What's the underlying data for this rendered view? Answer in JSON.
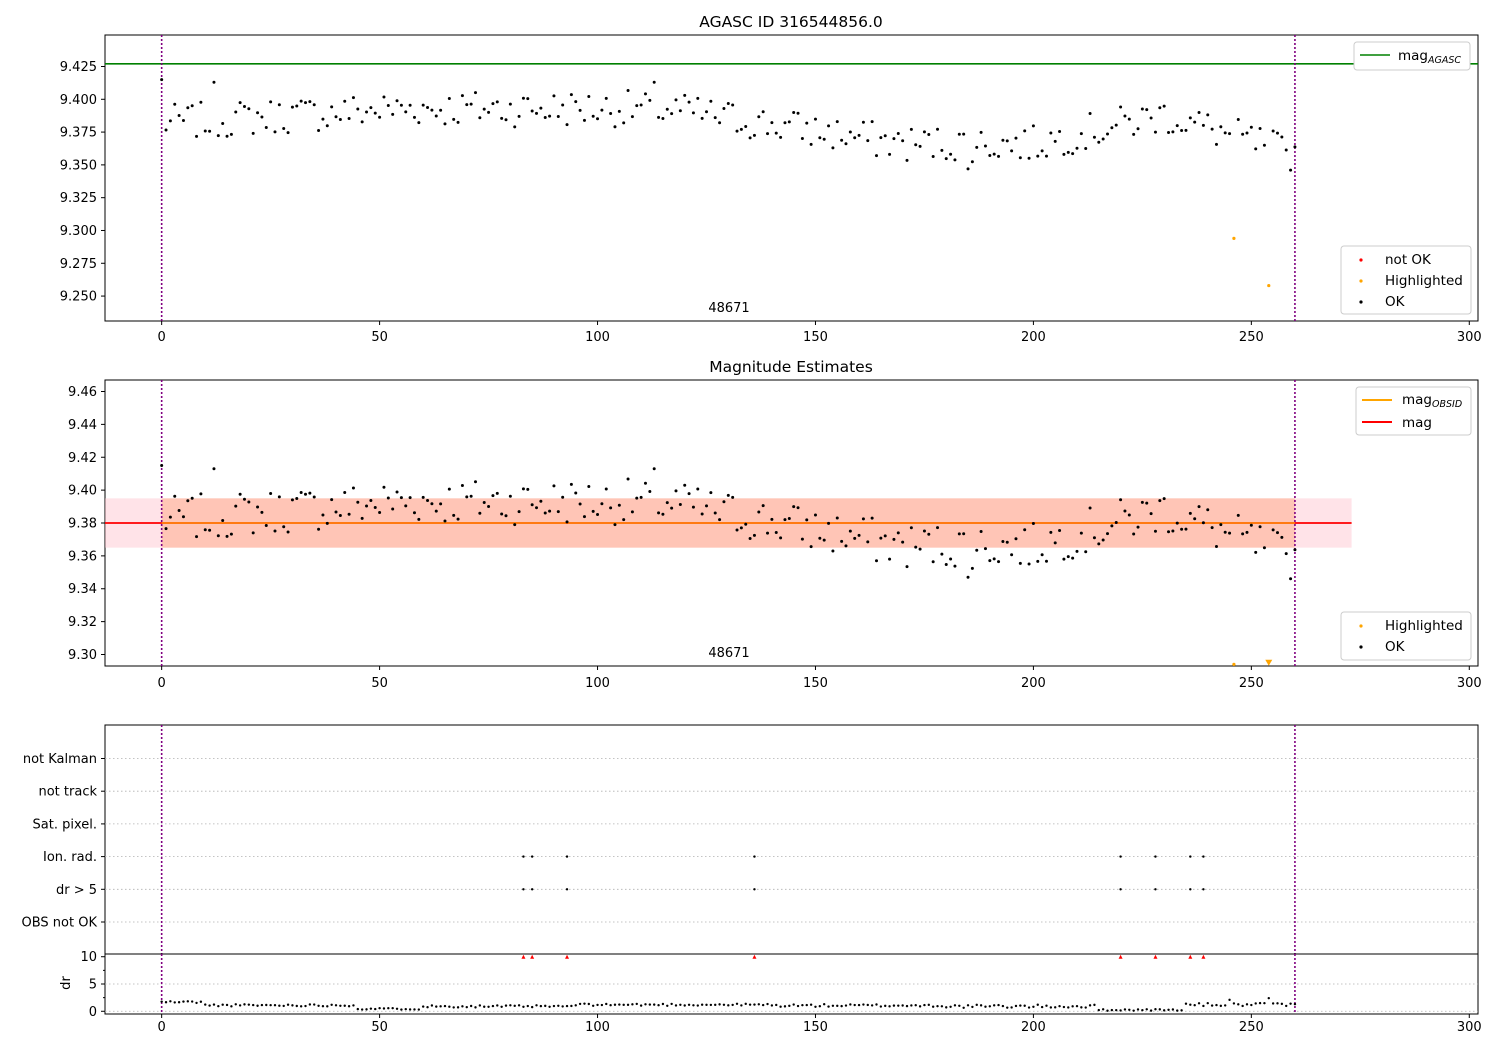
{
  "chart_data": [
    {
      "type": "scatter",
      "title": "AGASC ID 316544856.0",
      "annotation": "48671",
      "xlim": [
        -13,
        302
      ],
      "ylim": [
        9.231,
        9.449
      ],
      "xticks": [
        0,
        50,
        100,
        150,
        200,
        250,
        300
      ],
      "yticks": [
        9.25,
        9.275,
        9.3,
        9.325,
        9.35,
        9.375,
        9.4,
        9.425
      ],
      "ytick_labels": [
        "9.250",
        "9.275",
        "9.300",
        "9.325",
        "9.350",
        "9.375",
        "9.400",
        "9.425"
      ],
      "vlines": [
        0,
        260
      ],
      "hline": {
        "name": "mag_AGASC",
        "y": 9.427,
        "color": "#008000"
      },
      "highlighted": {
        "x": [
          246,
          254
        ],
        "y": [
          9.294,
          9.258
        ]
      },
      "legend_lines": [
        {
          "label": "mag",
          "sub": "AGASC",
          "color": "#008000"
        }
      ],
      "legend_points": [
        {
          "label": "not OK",
          "color": "#ff0000"
        },
        {
          "label": "Highlighted",
          "color": "#ffa500"
        },
        {
          "label": "OK",
          "color": "#000000"
        }
      ]
    },
    {
      "type": "scatter",
      "title": "Magnitude Estimates",
      "annotation": "48671",
      "xlim": [
        -13,
        302
      ],
      "ylim": [
        9.293,
        9.467
      ],
      "xticks": [
        0,
        50,
        100,
        150,
        200,
        250,
        300
      ],
      "yticks": [
        9.3,
        9.32,
        9.34,
        9.36,
        9.38,
        9.4,
        9.42,
        9.44,
        9.46
      ],
      "ytick_labels": [
        "9.30",
        "9.32",
        "9.34",
        "9.36",
        "9.38",
        "9.40",
        "9.42",
        "9.44",
        "9.46"
      ],
      "vlines": [
        0,
        260
      ],
      "mean_mag": 9.38,
      "band_obsid": {
        "x": [
          0,
          260
        ],
        "y": [
          9.365,
          9.395
        ]
      },
      "band_mag": {
        "x": [
          -13,
          273
        ],
        "y": [
          9.365,
          9.395
        ]
      },
      "highlighted": {
        "x": [
          246,
          254
        ],
        "y": [
          9.294,
          9.295
        ]
      },
      "legend_lines": [
        {
          "label": "mag",
          "sub": "OBSID",
          "color": "#ffa500"
        },
        {
          "label": "mag",
          "sub": "",
          "color": "#ff0000"
        }
      ],
      "legend_points": [
        {
          "label": "Highlighted",
          "color": "#ffa500"
        },
        {
          "label": "OK",
          "color": "#000000"
        }
      ]
    },
    {
      "type": "scatter",
      "title": "",
      "xlim": [
        -13,
        302
      ],
      "vlines": [
        0,
        260
      ],
      "flag_rows": [
        "not Kalman",
        "not track",
        "Sat. pixel.",
        "Ion. rad.",
        "dr > 5",
        "OBS not OK"
      ],
      "flags": {
        "Ion. rad.": [
          83,
          85,
          93,
          136,
          220,
          228,
          236,
          239
        ],
        "dr > 5": [
          83,
          85,
          93,
          136,
          220,
          228,
          236,
          239
        ]
      }
    },
    {
      "type": "scatter",
      "title": "",
      "ylabel": "dr",
      "xlim": [
        -13,
        302
      ],
      "ylim": [
        -0.5,
        10.5
      ],
      "xticks": [
        0,
        50,
        100,
        150,
        200,
        250,
        300
      ],
      "yticks": [
        0,
        5,
        10
      ],
      "ytick_labels": [
        "0",
        "5",
        "10"
      ],
      "vlines": [
        0,
        260
      ],
      "clipped_markers": [
        83,
        85,
        93,
        136,
        220,
        228,
        236,
        239
      ]
    }
  ]
}
